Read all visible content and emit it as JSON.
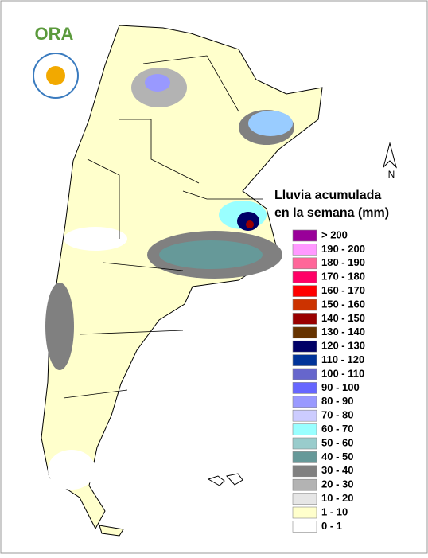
{
  "logo": "ORA",
  "north": "N",
  "title": [
    "Lluvia acumulada",
    "en la semana (mm)"
  ],
  "legend": [
    {
      "label": "> 200",
      "color": "#990099"
    },
    {
      "label": "190 - 200",
      "color": "#ff99ff"
    },
    {
      "label": "180 - 190",
      "color": "#ff6699"
    },
    {
      "label": "170 - 180",
      "color": "#ff0066"
    },
    {
      "label": "160 - 170",
      "color": "#ff0000"
    },
    {
      "label": "150 - 160",
      "color": "#cc3300"
    },
    {
      "label": "140 - 150",
      "color": "#990000"
    },
    {
      "label": "130 - 140",
      "color": "#663300"
    },
    {
      "label": "120 - 130",
      "color": "#000066"
    },
    {
      "label": "110 - 120",
      "color": "#003399"
    },
    {
      "label": "100 - 110",
      "color": "#6666cc"
    },
    {
      "label": "90 - 100",
      "color": "#6666ff"
    },
    {
      "label": "80 - 90",
      "color": "#9999ff"
    },
    {
      "label": "70 - 80",
      "color": "#ccccff"
    },
    {
      "label": "60 - 70",
      "color": "#99ffff"
    },
    {
      "label": "50 - 60",
      "color": "#99cccc"
    },
    {
      "label": "40 - 50",
      "color": "#669999"
    },
    {
      "label": "30 - 40",
      "color": "#808080"
    },
    {
      "label": "20 - 30",
      "color": "#b3b3b3"
    },
    {
      "label": "10 - 20",
      "color": "#e6e6e6"
    },
    {
      "label": "1 - 10",
      "color": "#ffffcc"
    },
    {
      "label": "0 - 1",
      "color": "#ffffff"
    }
  ]
}
